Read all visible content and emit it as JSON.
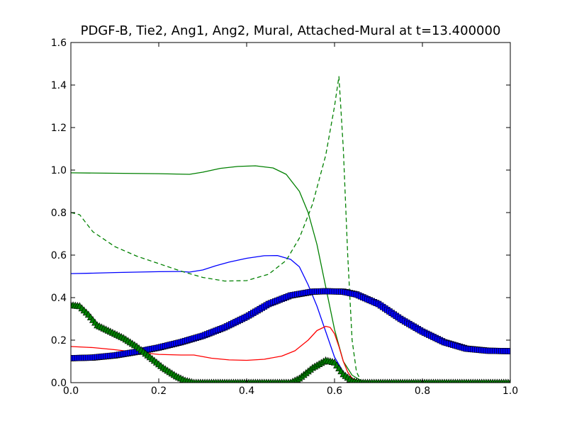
{
  "chart_data": {
    "type": "line",
    "title": "PDGF-B, Tie2, Ang1, Ang2, Mural, Attached-Mural at t=13.400000",
    "xlabel": "",
    "ylabel": "",
    "xlim": [
      0.0,
      1.0
    ],
    "ylim": [
      0.0,
      1.6
    ],
    "x_ticks": [
      "0.0",
      "0.2",
      "0.4",
      "0.6",
      "0.8",
      "1.0"
    ],
    "y_ticks": [
      "0.0",
      "0.2",
      "0.4",
      "0.6",
      "0.8",
      "1.0",
      "1.2",
      "1.4",
      "1.6"
    ],
    "grid": false,
    "legend": "none",
    "series": [
      {
        "color": "#0000ff",
        "style": "solid",
        "marker": "none",
        "points": [
          [
            0.0,
            0.513
          ],
          [
            0.05,
            0.515
          ],
          [
            0.1,
            0.518
          ],
          [
            0.15,
            0.52
          ],
          [
            0.2,
            0.522
          ],
          [
            0.25,
            0.523
          ],
          [
            0.27,
            0.52
          ],
          [
            0.3,
            0.53
          ],
          [
            0.33,
            0.55
          ],
          [
            0.36,
            0.567
          ],
          [
            0.4,
            0.585
          ],
          [
            0.44,
            0.597
          ],
          [
            0.47,
            0.598
          ],
          [
            0.5,
            0.58
          ],
          [
            0.52,
            0.545
          ],
          [
            0.54,
            0.46
          ],
          [
            0.56,
            0.36
          ],
          [
            0.58,
            0.24
          ],
          [
            0.6,
            0.12
          ],
          [
            0.62,
            0.05
          ],
          [
            0.64,
            0.015
          ],
          [
            0.66,
            0.003
          ],
          [
            0.7,
            0.0
          ],
          [
            0.8,
            0.0
          ],
          [
            0.9,
            0.0
          ],
          [
            1.0,
            0.0
          ]
        ]
      },
      {
        "color": "#008000",
        "style": "solid",
        "marker": "none",
        "points": [
          [
            0.0,
            0.987
          ],
          [
            0.1,
            0.985
          ],
          [
            0.2,
            0.983
          ],
          [
            0.27,
            0.98
          ],
          [
            0.3,
            0.99
          ],
          [
            0.34,
            1.008
          ],
          [
            0.38,
            1.017
          ],
          [
            0.42,
            1.02
          ],
          [
            0.46,
            1.01
          ],
          [
            0.49,
            0.98
          ],
          [
            0.52,
            0.9
          ],
          [
            0.54,
            0.8
          ],
          [
            0.56,
            0.65
          ],
          [
            0.58,
            0.45
          ],
          [
            0.6,
            0.25
          ],
          [
            0.62,
            0.1
          ],
          [
            0.64,
            0.035
          ],
          [
            0.66,
            0.01
          ],
          [
            0.7,
            0.002
          ],
          [
            0.8,
            0.0
          ],
          [
            1.0,
            0.0
          ]
        ]
      },
      {
        "color": "#ff0000",
        "style": "solid",
        "marker": "none",
        "points": [
          [
            0.0,
            0.17
          ],
          [
            0.05,
            0.165
          ],
          [
            0.1,
            0.155
          ],
          [
            0.15,
            0.143
          ],
          [
            0.2,
            0.133
          ],
          [
            0.25,
            0.13
          ],
          [
            0.28,
            0.13
          ],
          [
            0.32,
            0.115
          ],
          [
            0.36,
            0.107
          ],
          [
            0.4,
            0.105
          ],
          [
            0.44,
            0.11
          ],
          [
            0.48,
            0.125
          ],
          [
            0.51,
            0.15
          ],
          [
            0.54,
            0.2
          ],
          [
            0.56,
            0.245
          ],
          [
            0.58,
            0.265
          ],
          [
            0.59,
            0.26
          ],
          [
            0.6,
            0.23
          ],
          [
            0.61,
            0.17
          ],
          [
            0.62,
            0.1
          ],
          [
            0.63,
            0.05
          ],
          [
            0.64,
            0.02
          ],
          [
            0.66,
            0.005
          ],
          [
            0.7,
            0.0
          ],
          [
            1.0,
            0.0
          ]
        ]
      },
      {
        "color": "#008000",
        "style": "dashed",
        "marker": "none",
        "points": [
          [
            0.0,
            0.8
          ],
          [
            0.02,
            0.79
          ],
          [
            0.05,
            0.71
          ],
          [
            0.1,
            0.64
          ],
          [
            0.15,
            0.595
          ],
          [
            0.2,
            0.56
          ],
          [
            0.25,
            0.525
          ],
          [
            0.3,
            0.495
          ],
          [
            0.35,
            0.478
          ],
          [
            0.4,
            0.48
          ],
          [
            0.45,
            0.51
          ],
          [
            0.49,
            0.575
          ],
          [
            0.52,
            0.68
          ],
          [
            0.55,
            0.84
          ],
          [
            0.58,
            1.07
          ],
          [
            0.6,
            1.3
          ],
          [
            0.61,
            1.44
          ],
          [
            0.62,
            1.1
          ],
          [
            0.63,
            0.6
          ],
          [
            0.64,
            0.2
          ],
          [
            0.65,
            0.05
          ],
          [
            0.66,
            0.01
          ],
          [
            0.7,
            0.0
          ],
          [
            1.0,
            0.0
          ]
        ]
      },
      {
        "color": "#0000ff",
        "style": "solid",
        "marker": "square",
        "points": [
          [
            0.0,
            0.115
          ],
          [
            0.05,
            0.118
          ],
          [
            0.1,
            0.128
          ],
          [
            0.15,
            0.145
          ],
          [
            0.2,
            0.165
          ],
          [
            0.25,
            0.19
          ],
          [
            0.3,
            0.22
          ],
          [
            0.35,
            0.26
          ],
          [
            0.4,
            0.31
          ],
          [
            0.45,
            0.37
          ],
          [
            0.5,
            0.41
          ],
          [
            0.55,
            0.428
          ],
          [
            0.58,
            0.43
          ],
          [
            0.62,
            0.428
          ],
          [
            0.65,
            0.415
          ],
          [
            0.7,
            0.37
          ],
          [
            0.75,
            0.3
          ],
          [
            0.8,
            0.24
          ],
          [
            0.85,
            0.19
          ],
          [
            0.9,
            0.16
          ],
          [
            0.95,
            0.15
          ],
          [
            1.0,
            0.148
          ]
        ]
      },
      {
        "color": "#008000",
        "style": "solid",
        "marker": "triangle",
        "points": [
          [
            0.0,
            0.365
          ],
          [
            0.02,
            0.36
          ],
          [
            0.04,
            0.32
          ],
          [
            0.06,
            0.27
          ],
          [
            0.08,
            0.25
          ],
          [
            0.1,
            0.23
          ],
          [
            0.12,
            0.21
          ],
          [
            0.15,
            0.17
          ],
          [
            0.18,
            0.12
          ],
          [
            0.21,
            0.07
          ],
          [
            0.24,
            0.03
          ],
          [
            0.26,
            0.01
          ],
          [
            0.28,
            0.0
          ],
          [
            0.5,
            0.0
          ],
          [
            0.52,
            0.02
          ],
          [
            0.55,
            0.07
          ],
          [
            0.58,
            0.105
          ],
          [
            0.6,
            0.095
          ],
          [
            0.62,
            0.04
          ],
          [
            0.64,
            0.008
          ],
          [
            0.66,
            0.0
          ],
          [
            0.8,
            0.0
          ],
          [
            1.0,
            0.0
          ]
        ]
      }
    ]
  }
}
